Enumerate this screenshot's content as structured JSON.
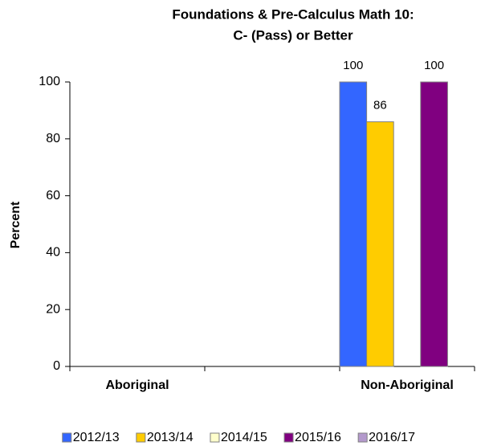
{
  "chart_data": {
    "type": "bar",
    "title": "Foundations & Pre-Calculus Math 10:",
    "subtitle": "C- (Pass) or Better",
    "y_label": "Percent",
    "categories": [
      "Aboriginal",
      null,
      "Non-Aboriginal"
    ],
    "series": [
      {
        "name": "2012/13",
        "color": "#3366ff",
        "values": [
          null,
          null,
          100
        ]
      },
      {
        "name": "2013/14",
        "color": "#ffcc00",
        "values": [
          null,
          null,
          86
        ]
      },
      {
        "name": "2014/15",
        "color": "#ffffcc",
        "values": [
          null,
          null,
          null
        ]
      },
      {
        "name": "2015/16",
        "color": "#800080",
        "values": [
          null,
          null,
          100
        ]
      },
      {
        "name": "2016/17",
        "color": "#b399cc",
        "values": [
          null,
          null,
          null
        ]
      }
    ],
    "ylim": [
      0,
      100
    ],
    "yticks": [
      0,
      20,
      40,
      60,
      80,
      100
    ]
  }
}
